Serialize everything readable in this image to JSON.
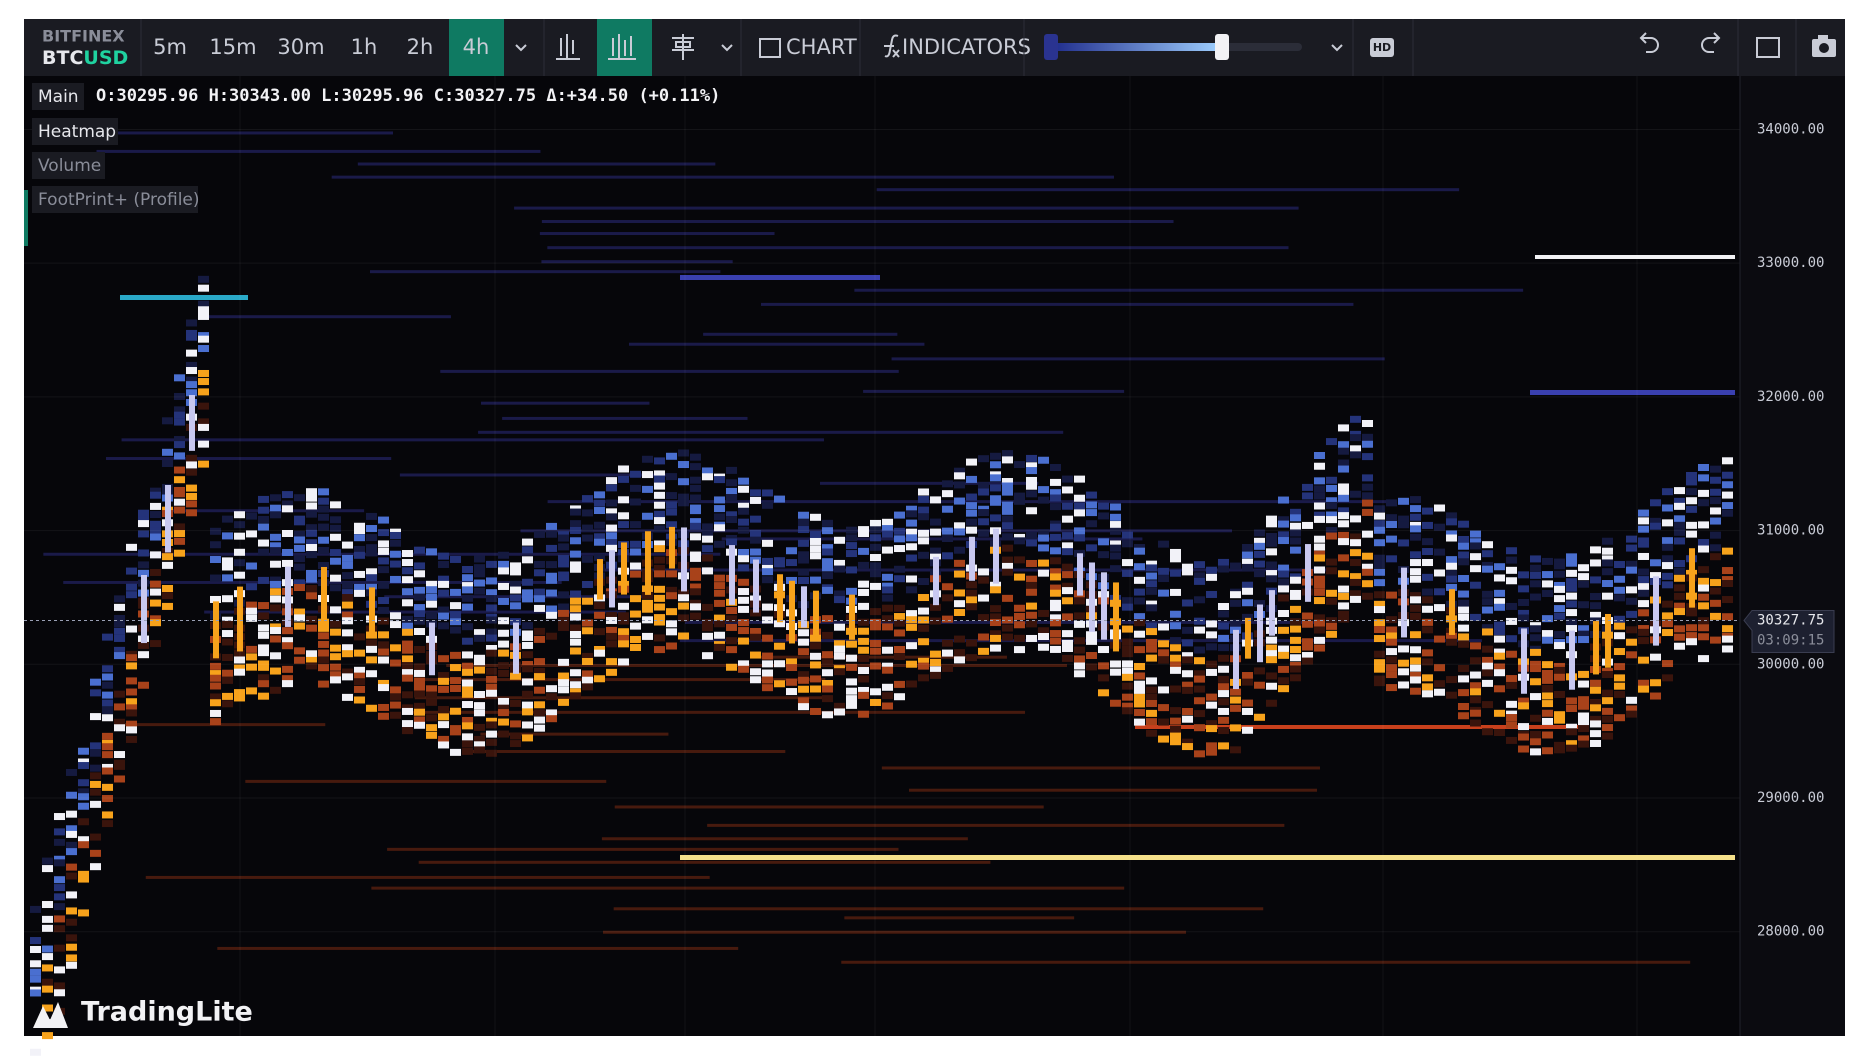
{
  "toolbar": {
    "exchange": "BITFINEX",
    "base": "BTC",
    "quote": "USD",
    "timeframes": [
      "5m",
      "15m",
      "30m",
      "1h",
      "2h",
      "4h"
    ],
    "active_timeframe": "4h",
    "chart_button": "CHART",
    "indicators_button": "INDICATORS",
    "hd_badge": "HD"
  },
  "legend": {
    "layer": "Main",
    "ohlc": "O:30295.96 H:30343.00 L:30295.96 C:30327.75 Δ:+34.50 (+0.11%)"
  },
  "layers": [
    "Heatmap",
    "Volume",
    "FootPrint+ (Profile)"
  ],
  "price_axis": {
    "ylim": [
      27220,
      34400
    ],
    "ticks": [
      {
        "value": 34000,
        "label": "34000.00"
      },
      {
        "value": 33000,
        "label": "33000.00"
      },
      {
        "value": 32000,
        "label": "32000.00"
      },
      {
        "value": 31000,
        "label": "31000.00"
      },
      {
        "value": 30000,
        "label": "30000.00"
      },
      {
        "value": 29000,
        "label": "29000.00"
      },
      {
        "value": 28000,
        "label": "28000.00"
      }
    ],
    "current_price": {
      "value": 30327.75,
      "label": "30327.75"
    },
    "countdown": "03:09:15"
  },
  "branding": "TradingLite"
}
